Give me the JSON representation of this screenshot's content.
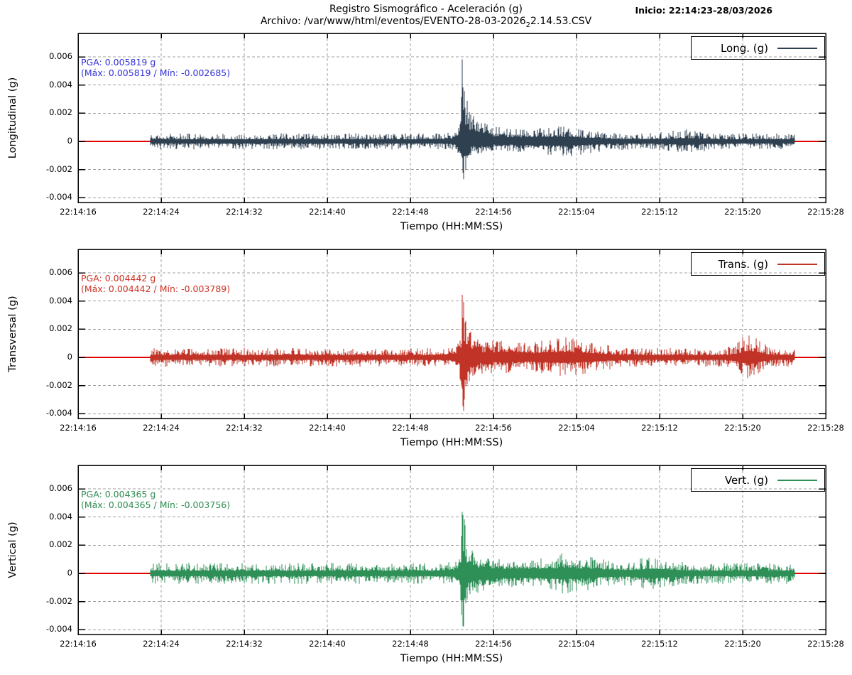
{
  "header": {
    "title": "Registro Sismográfico - Aceleración (g)",
    "file_prefix": "Archivo: /var/www/html/eventos/EVENTO-28-03-2026",
    "file_sub": "2",
    "file_suffix": "2.14.53.CSV",
    "inicio": "Inicio: 22:14:23-28/03/2026"
  },
  "axes": {
    "x_label": "Tiempo (HH:MM:SS)",
    "x_ticks": [
      "22:14:16",
      "22:14:24",
      "22:14:32",
      "22:14:40",
      "22:14:48",
      "22:14:56",
      "22:15:04",
      "22:15:12",
      "22:15:20",
      "22:15:28"
    ],
    "y_ticks": [
      "0.006",
      "0.004",
      "0.002",
      "0",
      "-0.002",
      "-0.004"
    ]
  },
  "panels": [
    {
      "y_label": "Longitudinal (g)",
      "legend_label": "Long. (g)",
      "pga_line1": "PGA: 0.005819 g",
      "pga_line2": "(Máx: 0.005819 / Mín: -0.002685)",
      "line_color": "#2f4050",
      "annot_color": "#3232d8"
    },
    {
      "y_label": "Transversal (g)",
      "legend_label": "Trans. (g)",
      "pga_line1": "PGA: 0.004442 g",
      "pga_line2": "(Máx: 0.004442 / Mín: -0.003789)",
      "line_color": "#c03326",
      "annot_color": "#cc3122"
    },
    {
      "y_label": "Vertical (g)",
      "legend_label": "Vert. (g)",
      "pga_line1": "PGA: 0.004365 g",
      "pga_line2": "(Máx: 0.004365 / Mín: -0.003756)",
      "line_color": "#2e8f57",
      "annot_color": "#2e8b50"
    }
  ],
  "colors": {
    "zero_line": "#e00000",
    "grid": "#a0a0a0",
    "border": "#000000"
  },
  "chart_data": {
    "type": "line",
    "title": "Registro Sismográfico - Aceleración (g)",
    "subtitle": "Archivo: /var/www/html/eventos/EVENTO-28-03-2026_22.14.53.CSV",
    "start_label": "Inicio: 22:14:23-28/03/2026",
    "x_label": "Tiempo (HH:MM:SS)",
    "x_range": [
      "22:14:16",
      "22:15:28"
    ],
    "x_tick_interval_s": 8,
    "y_tick_values": [
      0.006,
      0.004,
      0.002,
      0,
      -0.002,
      -0.004
    ],
    "grid": true,
    "legend_position": "top-right-boxed",
    "zero_reference_line": 0,
    "signal_start": "22:14:23",
    "signal_end": "22:15:25",
    "event_peak_time": "22:14:53",
    "panels": [
      {
        "name": "Longitudinal",
        "legend": "Long. (g)",
        "pga_g": 0.005819,
        "max_g": 0.005819,
        "min_g": -0.002685,
        "baseline_noise_g": 0.0004
      },
      {
        "name": "Transversal",
        "legend": "Trans. (g)",
        "pga_g": 0.004442,
        "max_g": 0.004442,
        "min_g": -0.003789,
        "baseline_noise_g": 0.00045
      },
      {
        "name": "Vertical",
        "legend": "Vert. (g)",
        "pga_g": 0.004365,
        "max_g": 0.004365,
        "min_g": -0.003756,
        "baseline_noise_g": 0.0005
      }
    ]
  }
}
